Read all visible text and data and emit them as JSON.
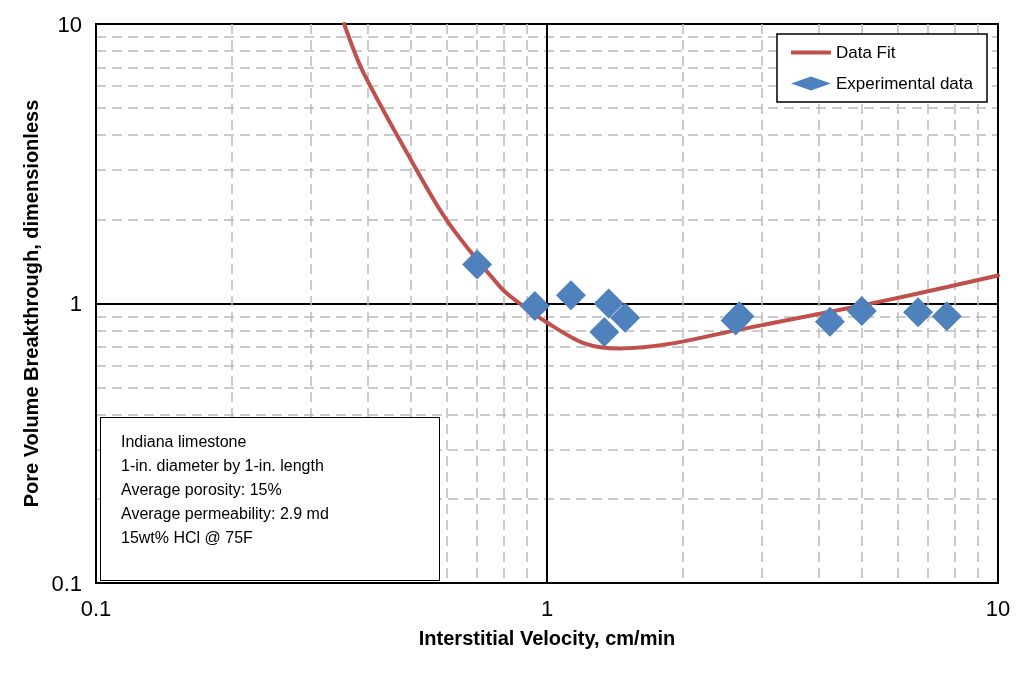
{
  "chart_data": {
    "type": "scatter",
    "xlabel": "Interstitial Velocity, cm/min",
    "ylabel": "Pore Volume Breakthrough, dimensionless",
    "log": "xy",
    "xlim": [
      0.1,
      10
    ],
    "ylim": [
      0.1,
      10
    ],
    "xticks": [
      0.1,
      1,
      10
    ],
    "yticks": [
      0.1,
      1,
      10
    ],
    "grid": true,
    "legend": "top right",
    "marker": "diamond",
    "series": [
      {
        "name": "Data Fit",
        "type": "line",
        "color": "#c0504d",
        "marker": "none",
        "x": [
          0.355,
          0.39,
          0.5,
          0.6,
          0.79,
          0.87,
          1.0,
          1.21,
          1.45,
          1.9,
          2.6,
          4.33,
          6.2,
          10
        ],
        "values": [
          10,
          6.8,
          3.25,
          1.98,
          1.14,
          1.0,
          0.855,
          0.72,
          0.69,
          0.72,
          0.8,
          0.94,
          1.06,
          1.26
        ]
      },
      {
        "name": "Experimental data",
        "color": "#4f81bd",
        "x": [
          0.7,
          0.94,
          1.13,
          1.37,
          1.34,
          1.49,
          2.62,
          2.67,
          4.24,
          4.99,
          6.65,
          7.7
        ],
        "values": [
          1.38,
          0.98,
          1.07,
          1.0,
          0.79,
          0.89,
          0.87,
          0.9,
          0.86,
          0.94,
          0.93,
          0.9
        ]
      }
    ],
    "annotations": [
      "Indiana limestone",
      "1-in. diameter by 1-in. length",
      "Average porosity: 15%",
      "Average permeability: 2.9 md",
      "15wt% HCl @ 75F"
    ]
  }
}
